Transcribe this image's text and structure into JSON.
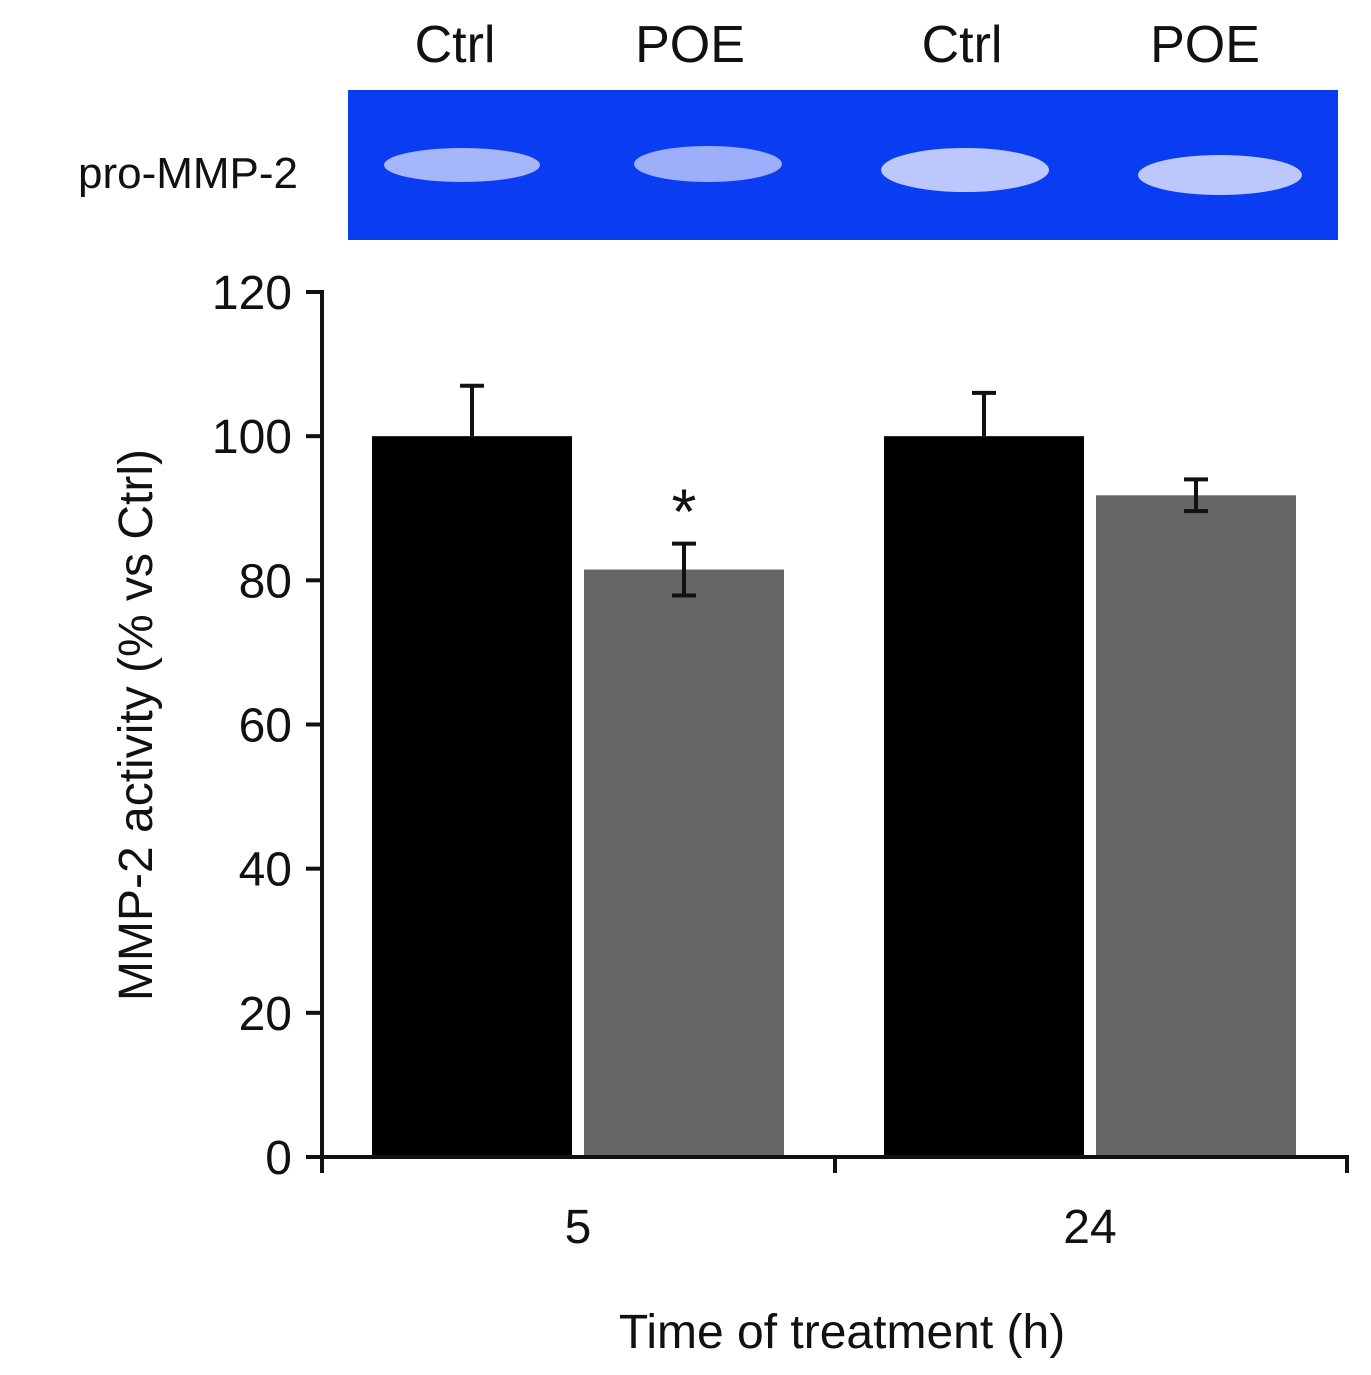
{
  "gel": {
    "row_label": "pro-MMP-2",
    "lanes": [
      "Ctrl",
      "POE",
      "Ctrl",
      "POE"
    ],
    "background_color": "#0a3cf2",
    "band_color": "#b7c3fb"
  },
  "chart_data": {
    "type": "bar",
    "categories": [
      "5",
      "24"
    ],
    "series": [
      {
        "values": [
          100,
          100
        ],
        "errors": [
          7,
          6
        ],
        "color": "#000000"
      },
      {
        "values": [
          81.5,
          91.8
        ],
        "errors": [
          3.6,
          2.2
        ],
        "color": "#666666"
      }
    ],
    "ylabel": "MMP-2 activity (% vs Ctrl)",
    "xlabel": "Time of treatment (h)",
    "ylim": [
      0,
      120
    ],
    "yticks": [
      0,
      20,
      40,
      60,
      80,
      100,
      120
    ],
    "annotations": [
      {
        "category": "5",
        "series_index": 1,
        "text": "*"
      }
    ],
    "grid": false,
    "legend": "none"
  }
}
